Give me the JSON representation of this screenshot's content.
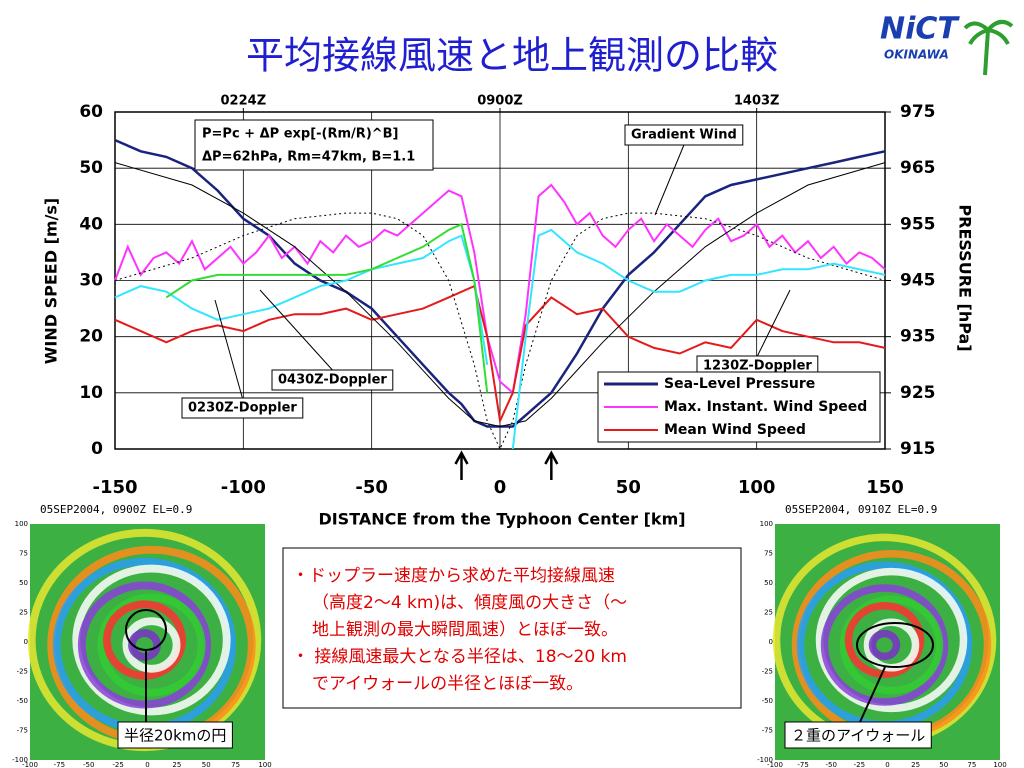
{
  "title": "平均接線風速と地上観測の比較",
  "logo": {
    "main": "NiCT",
    "sub": "OKINAWA"
  },
  "chart_data": {
    "type": "line",
    "xlabel": "DISTANCE from the Typhoon Center [km]",
    "ylabel": "WIND SPEED [m/s]",
    "y2label": "PRESSURE [hPa]",
    "xlim": [
      -150,
      150
    ],
    "xticks": [
      -150,
      -100,
      -50,
      0,
      50,
      100,
      150
    ],
    "ylim": [
      0,
      60
    ],
    "yticks": [
      0,
      10,
      20,
      30,
      40,
      50,
      60
    ],
    "y2lim": [
      915,
      975
    ],
    "y2ticks": [
      915,
      925,
      935,
      945,
      955,
      965,
      975
    ],
    "x2ticks": [
      {
        "value": -100,
        "label": "0224Z"
      },
      {
        "value": 0,
        "label": "0900Z"
      },
      {
        "value": 100,
        "label": "1403Z"
      }
    ],
    "grid": true,
    "legend": "lower right",
    "arrows_x": [
      -15,
      20
    ],
    "formula": [
      "P=Pc + ΔP exp[-(Rm/R)^B]",
      "ΔP=62hPa, Rm=47km, B=1.1"
    ],
    "series": [
      {
        "name": "Sea-Level Pressure",
        "color": "#1a237e",
        "axis": "y2",
        "x": [
          -150,
          -140,
          -130,
          -120,
          -110,
          -100,
          -90,
          -80,
          -70,
          -60,
          -50,
          -40,
          -30,
          -20,
          -15,
          -10,
          -5,
          0,
          5,
          10,
          20,
          30,
          40,
          50,
          60,
          70,
          80,
          90,
          100,
          110,
          120,
          130,
          140,
          150
        ],
        "values": [
          970,
          968,
          967,
          965,
          961,
          956,
          953,
          948,
          945,
          943,
          940,
          935,
          930,
          925,
          923,
          920,
          919,
          919,
          919,
          921,
          925,
          932,
          940,
          946,
          950,
          955,
          960,
          962,
          963,
          964,
          965,
          966,
          967,
          968
        ]
      },
      {
        "name": "Max. Instant. Wind Speed",
        "color": "#ff33ff",
        "x": [
          -150,
          -145,
          -140,
          -135,
          -130,
          -125,
          -120,
          -115,
          -110,
          -105,
          -100,
          -95,
          -90,
          -85,
          -80,
          -75,
          -70,
          -65,
          -60,
          -55,
          -50,
          -45,
          -40,
          -35,
          -30,
          -25,
          -20,
          -15,
          -10,
          -5,
          0,
          5,
          10,
          15,
          20,
          25,
          30,
          35,
          40,
          45,
          50,
          55,
          60,
          65,
          70,
          75,
          80,
          85,
          90,
          95,
          100,
          105,
          110,
          115,
          120,
          125,
          130,
          135,
          140,
          145,
          150
        ],
        "values": [
          30,
          36,
          31,
          34,
          35,
          33,
          37,
          32,
          34,
          36,
          33,
          35,
          38,
          34,
          36,
          33,
          37,
          35,
          38,
          36,
          37,
          39,
          38,
          40,
          42,
          44,
          46,
          45,
          35,
          20,
          12,
          10,
          24,
          45,
          47,
          44,
          40,
          42,
          38,
          36,
          39,
          41,
          37,
          40,
          38,
          36,
          39,
          41,
          37,
          38,
          40,
          36,
          38,
          35,
          37,
          34,
          36,
          33,
          35,
          34,
          32
        ]
      },
      {
        "name": "Mean Wind Speed",
        "color": "#e41a1c",
        "x": [
          -150,
          -140,
          -130,
          -120,
          -110,
          -100,
          -90,
          -80,
          -70,
          -60,
          -50,
          -40,
          -30,
          -20,
          -10,
          -5,
          0,
          5,
          10,
          20,
          30,
          40,
          50,
          60,
          70,
          80,
          90,
          100,
          110,
          120,
          130,
          140,
          150
        ],
        "values": [
          23,
          21,
          19,
          21,
          22,
          21,
          23,
          24,
          24,
          25,
          23,
          24,
          25,
          27,
          29,
          20,
          5,
          10,
          22,
          27,
          24,
          25,
          20,
          18,
          17,
          19,
          18,
          23,
          21,
          20,
          19,
          19,
          18
        ]
      },
      {
        "label": "Gradient Wind",
        "color": "#000000",
        "dashed": true,
        "x": [
          -150,
          -120,
          -100,
          -80,
          -60,
          -50,
          -40,
          -30,
          -20,
          -10,
          -5,
          0,
          5,
          10,
          20,
          30,
          40,
          50,
          60,
          80,
          100,
          120,
          150
        ],
        "values": [
          30,
          34,
          38,
          41,
          42,
          42,
          41,
          38,
          30,
          15,
          5,
          0,
          5,
          15,
          30,
          38,
          41,
          42,
          42,
          41,
          38,
          34,
          30
        ]
      },
      {
        "color": "#000000",
        "axis": "y2",
        "thin": true,
        "x": [
          -150,
          -120,
          -100,
          -80,
          -60,
          -40,
          -30,
          -20,
          -10,
          0,
          10,
          20,
          30,
          40,
          60,
          80,
          100,
          120,
          150
        ],
        "values": [
          966,
          962,
          957,
          951,
          943,
          934,
          929,
          924,
          920,
          919,
          920,
          924,
          929,
          934,
          943,
          951,
          957,
          962,
          966
        ]
      },
      {
        "label": "0230Z-Doppler",
        "color": "#33e6ff",
        "x": [
          -150,
          -140,
          -130,
          -120,
          -110,
          -100,
          -90,
          -80,
          -70,
          -60,
          -50,
          -40,
          -30,
          -20,
          -15,
          -10,
          -5
        ],
        "values": [
          27,
          29,
          28,
          25,
          23,
          24,
          25,
          27,
          29,
          30,
          32,
          33,
          34,
          37,
          38,
          30,
          15
        ]
      },
      {
        "label": "0430Z-Doppler",
        "color": "#33dd33",
        "x": [
          -130,
          -120,
          -110,
          -100,
          -90,
          -80,
          -70,
          -60,
          -50,
          -40,
          -30,
          -20,
          -15,
          -10,
          -5
        ],
        "values": [
          27,
          30,
          31,
          31,
          31,
          31,
          31,
          31,
          32,
          34,
          36,
          39,
          40,
          30,
          10
        ]
      },
      {
        "label": "1230Z-Doppler",
        "color": "#33e6ff",
        "x": [
          5,
          10,
          15,
          20,
          30,
          40,
          50,
          60,
          70,
          80,
          90,
          100,
          110,
          120,
          130,
          140,
          150
        ],
        "values": [
          0,
          20,
          38,
          39,
          35,
          33,
          30,
          28,
          28,
          30,
          31,
          31,
          32,
          32,
          33,
          32,
          31
        ]
      }
    ]
  },
  "bullets": [
    [
      "・ドップラー速度から求めた平均接線風速",
      "（高度2～4 km)は、傾度風の大きさ（～",
      "地上観測の最大瞬間風速）とほぼ一致。"
    ],
    [
      "・ 接線風速最大となる半径は、18～20 km",
      "でアイウォールの半径とほぼ一致。"
    ]
  ],
  "radars": [
    {
      "title": "05SEP2004, 0900Z   EL=0.9",
      "caption": "半径20kmの円"
    },
    {
      "title": "05SEP2004, 0910Z   EL=0.9",
      "caption": "２重のアイウォール"
    }
  ],
  "radar_ticks": [
    100,
    75,
    50,
    25,
    0,
    -25,
    -50,
    -75,
    -100
  ]
}
